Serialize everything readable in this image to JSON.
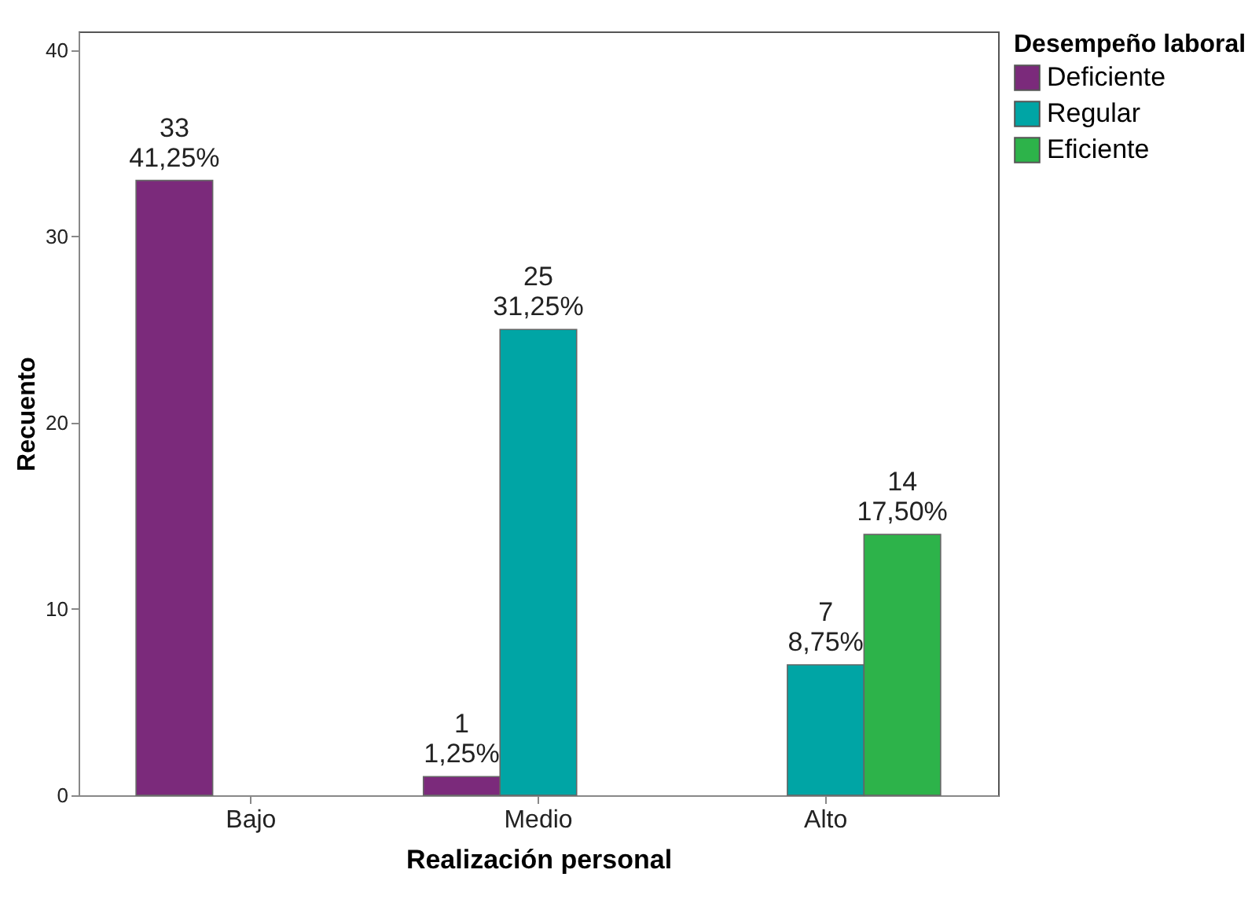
{
  "chart_data": {
    "type": "bar",
    "xlabel": "Realización personal",
    "ylabel": "Recuento",
    "legend_title": "Desempeño laboral",
    "legend": "top right",
    "categories": [
      "Bajo",
      "Medio",
      "Alto"
    ],
    "series": [
      {
        "name": "Deficiente",
        "color": "#7b2a7b",
        "values": [
          33,
          1,
          null
        ],
        "value_labels": [
          "33\n41,25%",
          "1\n1,25%",
          null
        ]
      },
      {
        "name": "Regular",
        "color": "#00a5a5",
        "values": [
          null,
          25,
          7
        ],
        "value_labels": [
          null,
          "25\n31,25%",
          "7\n8,75%"
        ]
      },
      {
        "name": "Eficiente",
        "color": "#2db34a",
        "values": [
          null,
          null,
          14
        ],
        "value_labels": [
          null,
          null,
          "14\n17,50%"
        ]
      }
    ],
    "ylim": [
      0,
      41
    ],
    "yticks": [
      0,
      10,
      20,
      30,
      40
    ],
    "grid": false
  }
}
